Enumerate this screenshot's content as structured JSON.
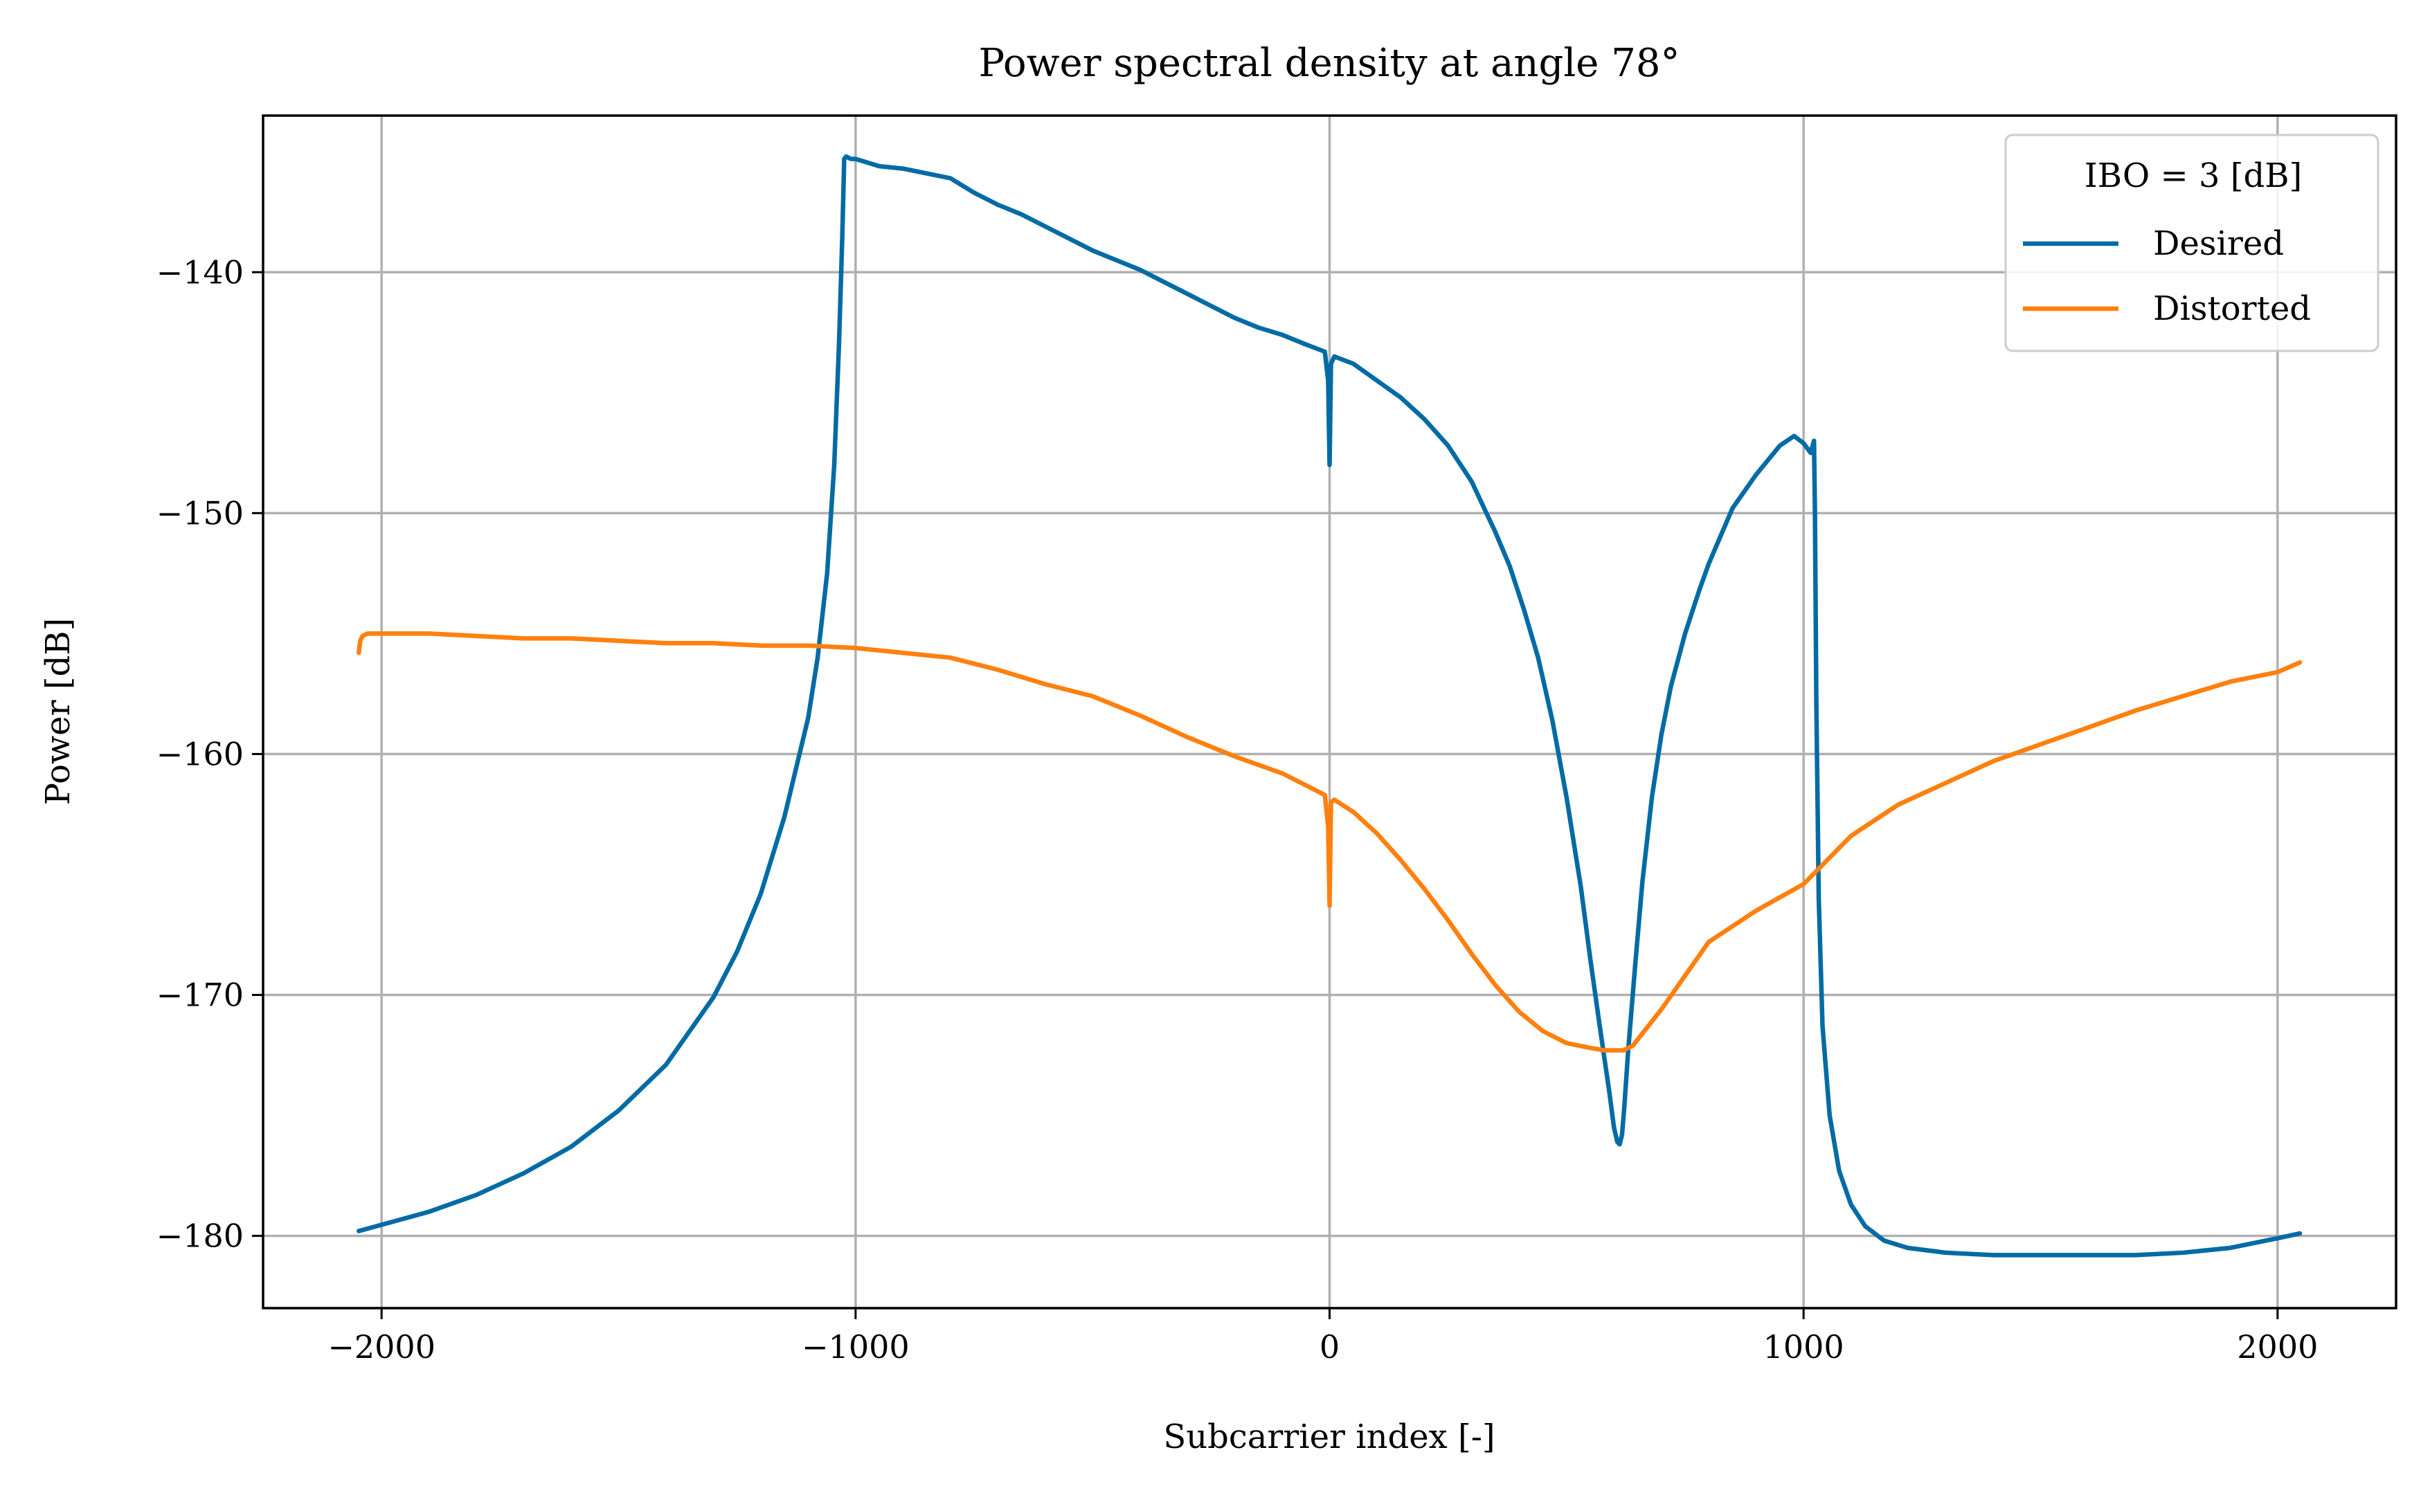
{
  "chart_data": {
    "type": "line",
    "title": "Power spectral density at angle 78°",
    "xlabel": "Subcarrier index [-]",
    "ylabel": "Power [dB]",
    "xlim": [
      -2250,
      2250
    ],
    "ylim": [
      -183,
      -133.5
    ],
    "xticks": [
      -2000,
      -1000,
      0,
      1000,
      2000
    ],
    "xtick_labels": [
      "−2000",
      "−1000",
      "0",
      "1000",
      "2000"
    ],
    "yticks": [
      -180,
      -170,
      -160,
      -150,
      -140
    ],
    "ytick_labels": [
      "−180",
      "−170",
      "−160",
      "−150",
      "−140"
    ],
    "grid": true,
    "legend": {
      "title": "IBO = 3 [dB]",
      "placement": "upper right"
    },
    "series": [
      {
        "name": "Desired",
        "color": "#006BA4",
        "x": [
          -2048,
          -1900,
          -1800,
          -1700,
          -1600,
          -1500,
          -1400,
          -1300,
          -1250,
          -1200,
          -1150,
          -1100,
          -1080,
          -1060,
          -1045,
          -1035,
          -1028,
          -1024,
          -1020,
          -1010,
          -1000,
          -950,
          -900,
          -850,
          -800,
          -750,
          -700,
          -650,
          -600,
          -550,
          -500,
          -450,
          -400,
          -350,
          -300,
          -250,
          -200,
          -150,
          -100,
          -50,
          -10,
          -3,
          0,
          3,
          10,
          50,
          100,
          150,
          200,
          250,
          300,
          350,
          380,
          410,
          440,
          470,
          500,
          530,
          550,
          570,
          590,
          600,
          607,
          612,
          617,
          622,
          630,
          645,
          660,
          680,
          700,
          720,
          750,
          780,
          800,
          850,
          900,
          950,
          980,
          1000,
          1015,
          1022,
          1024,
          1027,
          1032,
          1040,
          1055,
          1075,
          1100,
          1130,
          1170,
          1220,
          1300,
          1400,
          1500,
          1600,
          1700,
          1800,
          1900,
          2000,
          2047
        ],
        "values": [
          -179.8,
          -179.0,
          -178.3,
          -177.4,
          -176.3,
          -174.8,
          -172.9,
          -170.1,
          -168.2,
          -165.8,
          -162.6,
          -158.5,
          -156.0,
          -152.5,
          -148.0,
          -143.0,
          -138.5,
          -135.3,
          -135.2,
          -135.3,
          -135.3,
          -135.6,
          -135.7,
          -135.9,
          -136.1,
          -136.7,
          -137.2,
          -137.6,
          -138.1,
          -138.6,
          -139.1,
          -139.5,
          -139.9,
          -140.4,
          -140.9,
          -141.4,
          -141.9,
          -142.3,
          -142.6,
          -143.0,
          -143.3,
          -144.5,
          -148.0,
          -143.8,
          -143.5,
          -143.8,
          -144.5,
          -145.2,
          -146.1,
          -147.2,
          -148.7,
          -150.8,
          -152.2,
          -154.0,
          -156.0,
          -158.6,
          -161.8,
          -165.5,
          -168.5,
          -171.3,
          -174.0,
          -175.5,
          -176.1,
          -176.2,
          -175.8,
          -174.6,
          -172.3,
          -168.7,
          -165.3,
          -161.8,
          -159.2,
          -157.2,
          -155.0,
          -153.2,
          -152.1,
          -149.8,
          -148.4,
          -147.2,
          -146.8,
          -147.1,
          -147.5,
          -147.0,
          -150.0,
          -158.0,
          -166.0,
          -171.3,
          -175.0,
          -177.3,
          -178.7,
          -179.6,
          -180.2,
          -180.5,
          -180.7,
          -180.8,
          -180.8,
          -180.8,
          -180.8,
          -180.7,
          -180.5,
          -180.1,
          -179.9
        ]
      },
      {
        "name": "Distorted",
        "color": "#FF800E",
        "x": [
          -2048,
          -2045,
          -2040,
          -2030,
          -2000,
          -1900,
          -1800,
          -1700,
          -1600,
          -1500,
          -1400,
          -1300,
          -1200,
          -1100,
          -1000,
          -900,
          -800,
          -700,
          -600,
          -500,
          -400,
          -300,
          -200,
          -100,
          -50,
          -10,
          -3,
          0,
          3,
          10,
          50,
          100,
          150,
          200,
          250,
          300,
          350,
          400,
          450,
          500,
          550,
          580,
          600,
          620,
          640,
          660,
          700,
          750,
          800,
          900,
          1000,
          1100,
          1200,
          1300,
          1400,
          1500,
          1600,
          1700,
          1800,
          1900,
          2000,
          2047
        ],
        "values": [
          -155.8,
          -155.3,
          -155.1,
          -155.0,
          -155.0,
          -155.0,
          -155.1,
          -155.2,
          -155.2,
          -155.3,
          -155.4,
          -155.4,
          -155.5,
          -155.5,
          -155.6,
          -155.8,
          -156.0,
          -156.5,
          -157.1,
          -157.6,
          -158.4,
          -159.3,
          -160.1,
          -160.8,
          -161.3,
          -161.7,
          -163.0,
          -166.3,
          -162.0,
          -161.9,
          -162.4,
          -163.3,
          -164.4,
          -165.6,
          -166.9,
          -168.3,
          -169.6,
          -170.7,
          -171.5,
          -172.0,
          -172.2,
          -172.3,
          -172.3,
          -172.3,
          -172.1,
          -171.6,
          -170.6,
          -169.2,
          -167.8,
          -166.5,
          -165.4,
          -163.4,
          -162.1,
          -161.2,
          -160.3,
          -159.6,
          -158.9,
          -158.2,
          -157.6,
          -157.0,
          -156.6,
          -156.2
        ]
      }
    ]
  }
}
